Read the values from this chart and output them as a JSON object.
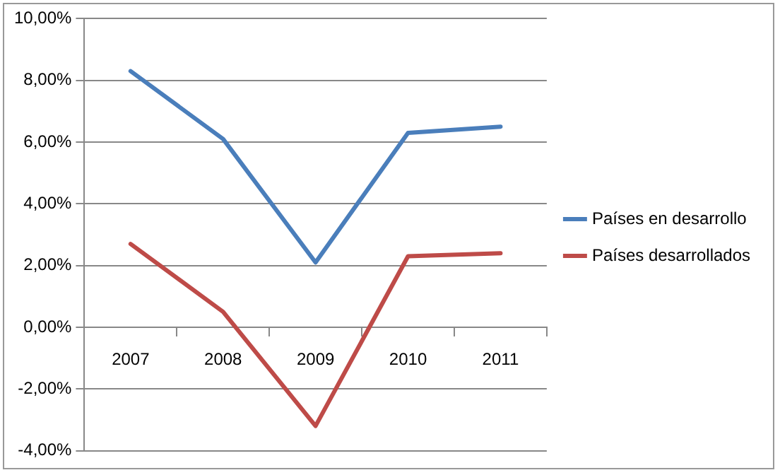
{
  "chart_data": {
    "type": "line",
    "categories": [
      "2007",
      "2008",
      "2009",
      "2010",
      "2011"
    ],
    "series": [
      {
        "name": "Países en desarrollo",
        "color": "#4a7ebb",
        "values": [
          8.3,
          6.1,
          2.1,
          6.3,
          6.5
        ]
      },
      {
        "name": "Países desarrollados",
        "color": "#be4b48",
        "values": [
          2.7,
          0.5,
          -3.2,
          2.3,
          2.4
        ]
      }
    ],
    "ylim": [
      -4,
      10
    ],
    "yticks": [
      {
        "value": -4,
        "label": "-4,00%"
      },
      {
        "value": -2,
        "label": "-2,00%"
      },
      {
        "value": 0,
        "label": "0,00%"
      },
      {
        "value": 2,
        "label": "2,00%"
      },
      {
        "value": 4,
        "label": "4,00%"
      },
      {
        "value": 6,
        "label": "6,00%"
      },
      {
        "value": 8,
        "label": "8,00%"
      },
      {
        "value": 10,
        "label": "10,00%"
      }
    ],
    "grid": "y",
    "legend": "right",
    "marker": "none",
    "line_style": "solid"
  }
}
